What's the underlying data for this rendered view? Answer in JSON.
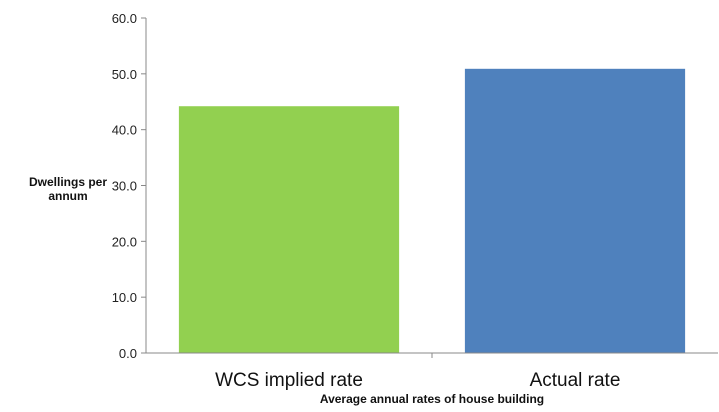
{
  "chart_data": {
    "type": "bar",
    "title": "",
    "categories": [
      "WCS implied rate",
      "Actual rate"
    ],
    "values": [
      44.2,
      50.9
    ],
    "colors": [
      "#92d050",
      "#4f81bd"
    ],
    "ylabel_lines": [
      "Dwellings per",
      "annum"
    ],
    "xlabel": "Average annual rates of house building",
    "ylim": [
      0,
      60
    ],
    "yticks": [
      "0.0",
      "10.0",
      "20.0",
      "30.0",
      "40.0",
      "50.0",
      "60.0"
    ],
    "grid": false,
    "legend": "none"
  }
}
